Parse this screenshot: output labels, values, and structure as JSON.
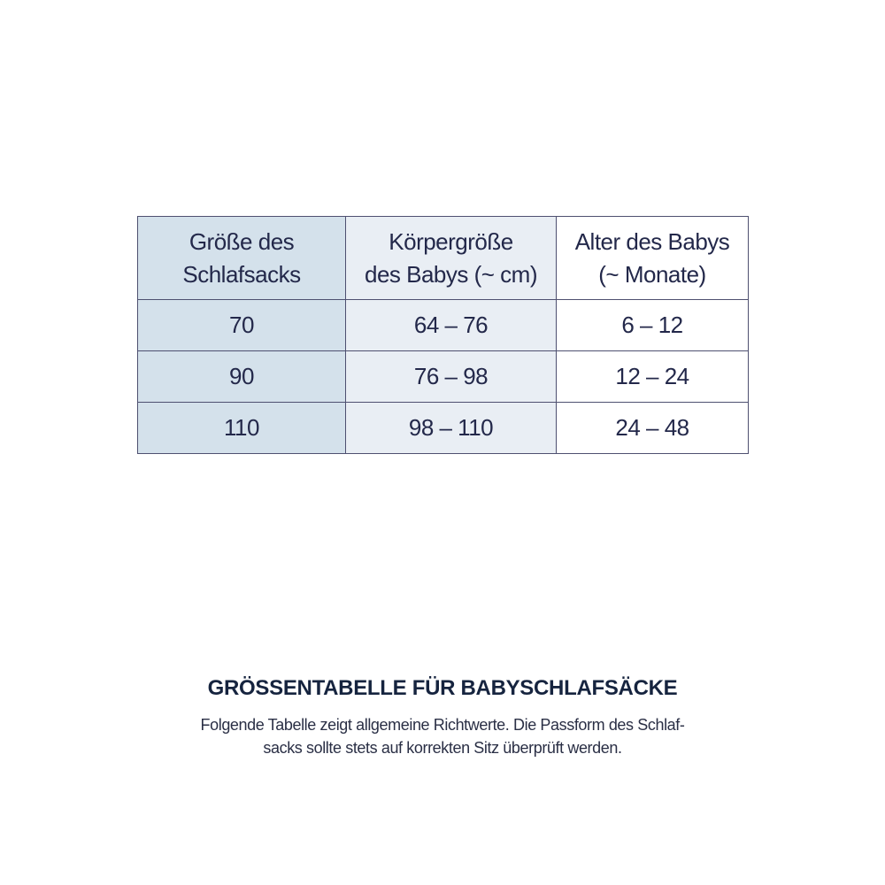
{
  "table": {
    "headers": [
      "Größe des Schlafsacks",
      "Körpergröße des Babys (~ cm)",
      "Alter des Babys (~ Monate)"
    ],
    "header_lines": [
      [
        "Größe des",
        "Schlafsacks"
      ],
      [
        "Körpergröße",
        "des Babys (~ cm)"
      ],
      [
        "Alter des Babys",
        "(~ Monate)"
      ]
    ],
    "rows": [
      [
        "70",
        "64 – 76",
        "6 – 12"
      ],
      [
        "90",
        "76 – 98",
        "12 – 24"
      ],
      [
        "110",
        "98 – 110",
        "24 – 48"
      ]
    ]
  },
  "caption": {
    "title": "GRÖSSENTABELLE FÜR BABYSCHLAFSÄCKE",
    "line1": "Folgende Tabelle zeigt allgemeine Richtwerte. Die Passform des Schlaf-",
    "line2": "sacks sollte stets auf korrekten Sitz überprüft werden."
  },
  "colors": {
    "text": "#23284a",
    "col1_bg": "#d4e1eb",
    "col2_bg": "#e9eef4",
    "border": "#4e5070"
  }
}
